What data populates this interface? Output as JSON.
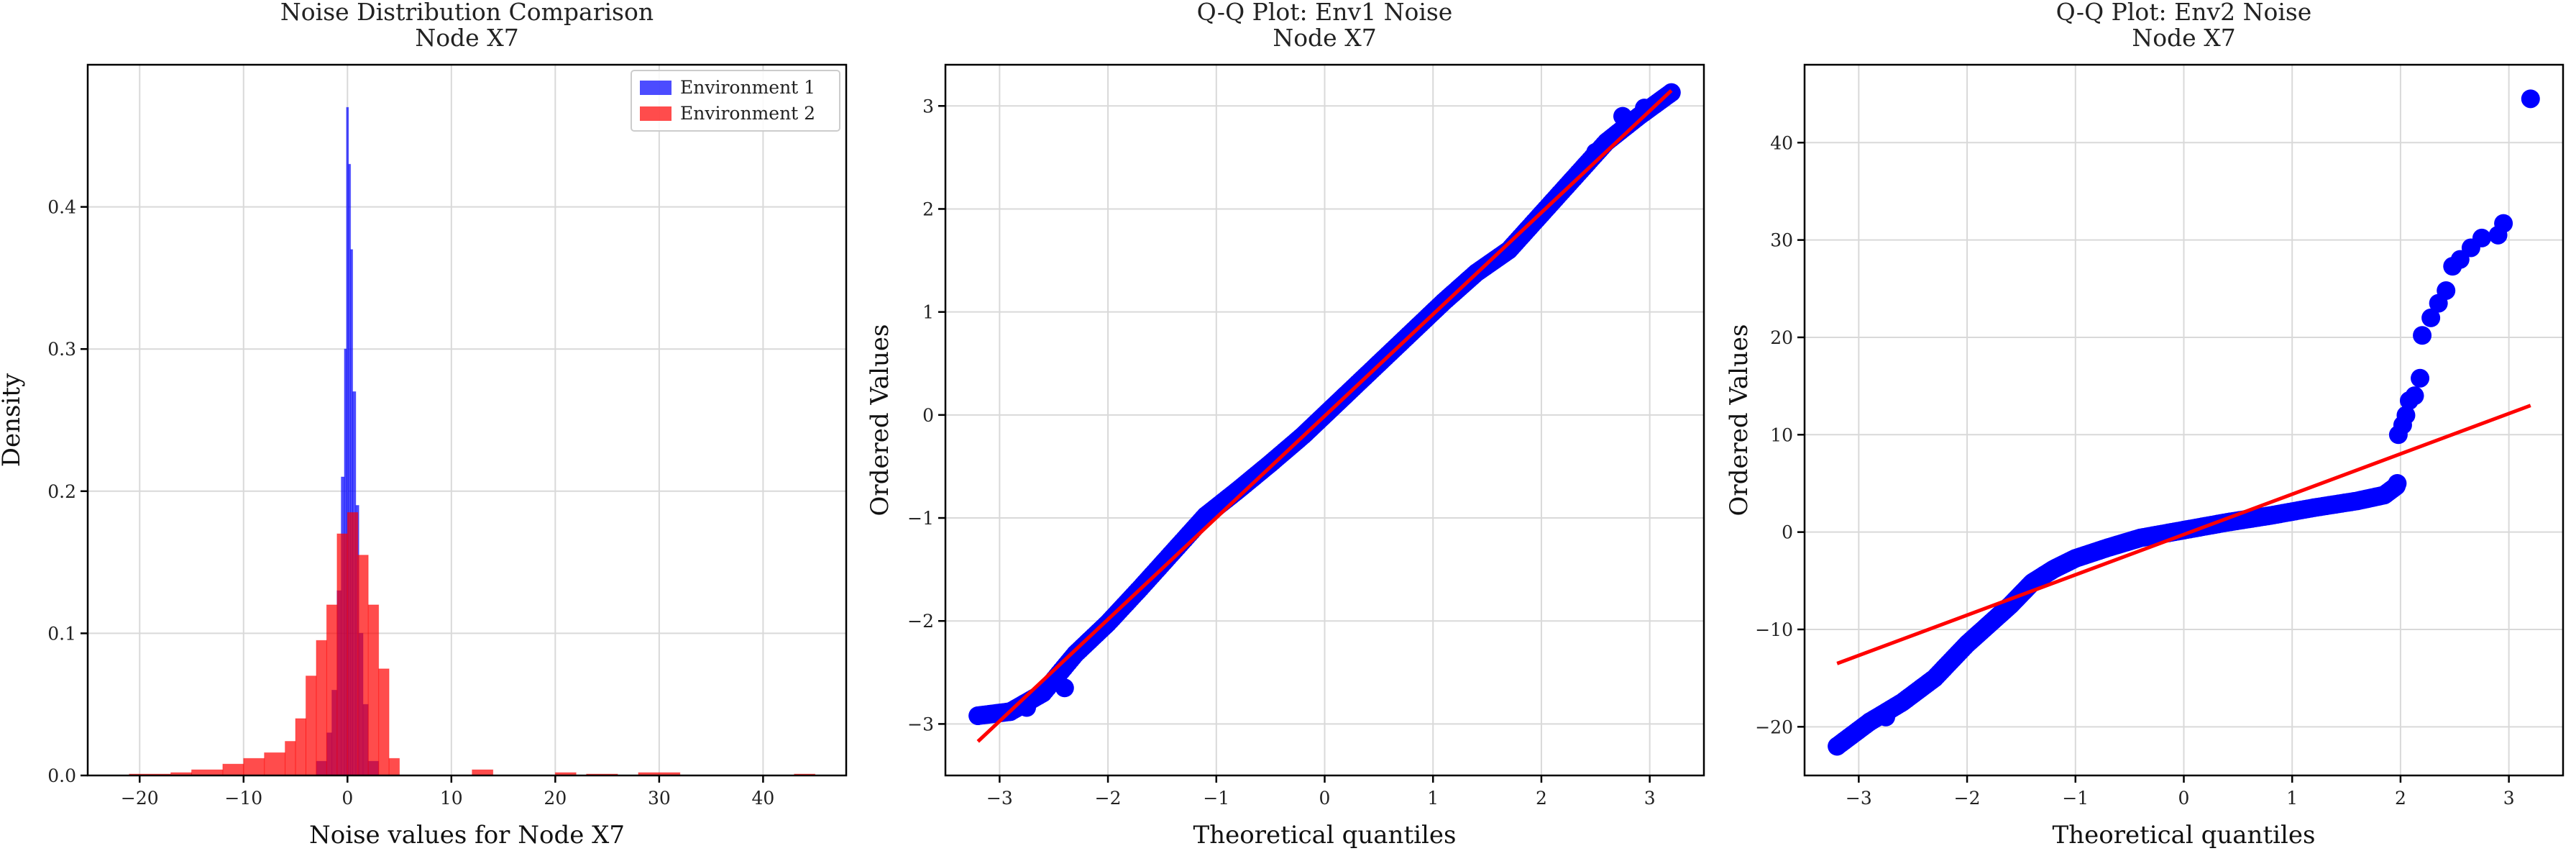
{
  "chart_data": [
    {
      "type": "histogram",
      "title": [
        "Noise Distribution Comparison",
        "Node X7"
      ],
      "xlabel": "Noise values for Node X7",
      "ylabel": "Density",
      "xlim": [
        -25,
        48
      ],
      "ylim": [
        0,
        0.5
      ],
      "xticks": [
        -20,
        -10,
        0,
        10,
        20,
        30,
        40
      ],
      "yticks": [
        0.0,
        0.1,
        0.2,
        0.3,
        0.4
      ],
      "grid": true,
      "legend_position": "top-right",
      "series": [
        {
          "name": "Environment 1",
          "color": "#0000ff",
          "bins": [
            [
              -3.0,
              -2.0,
              0.01
            ],
            [
              -2.0,
              -1.5,
              0.03
            ],
            [
              -1.5,
              -1.0,
              0.06
            ],
            [
              -1.0,
              -0.6,
              0.13
            ],
            [
              -0.6,
              -0.3,
              0.21
            ],
            [
              -0.3,
              -0.1,
              0.3
            ],
            [
              -0.1,
              0.1,
              0.47
            ],
            [
              0.1,
              0.3,
              0.43
            ],
            [
              0.3,
              0.5,
              0.37
            ],
            [
              0.5,
              0.8,
              0.27
            ],
            [
              0.8,
              1.1,
              0.19
            ],
            [
              1.1,
              1.5,
              0.1
            ],
            [
              1.5,
              2.0,
              0.05
            ],
            [
              2.0,
              3.0,
              0.01
            ]
          ]
        },
        {
          "name": "Environment 2",
          "color": "#ff0000",
          "bins": [
            [
              -21,
              -17,
              0.001
            ],
            [
              -17,
              -15,
              0.002
            ],
            [
              -15,
              -12,
              0.004
            ],
            [
              -12,
              -10,
              0.008
            ],
            [
              -10,
              -8,
              0.012
            ],
            [
              -8,
              -6,
              0.016
            ],
            [
              -6,
              -5,
              0.024
            ],
            [
              -5,
              -4,
              0.04
            ],
            [
              -4,
              -3,
              0.07
            ],
            [
              -3,
              -2,
              0.095
            ],
            [
              -2,
              -1,
              0.12
            ],
            [
              -1,
              0,
              0.17
            ],
            [
              0,
              1,
              0.185
            ],
            [
              1,
              2,
              0.155
            ],
            [
              2,
              3,
              0.12
            ],
            [
              3,
              4,
              0.075
            ],
            [
              4,
              5,
              0.012
            ],
            [
              12,
              14,
              0.004
            ],
            [
              20,
              22,
              0.002
            ],
            [
              23,
              26,
              0.001
            ],
            [
              28,
              32,
              0.002
            ],
            [
              43,
              45,
              0.001
            ]
          ]
        }
      ]
    },
    {
      "type": "scatter",
      "title": [
        "Q-Q Plot: Env1 Noise",
        "Node X7"
      ],
      "xlabel": "Theoretical quantiles",
      "ylabel": "Ordered Values",
      "xlim": [
        -3.5,
        3.5
      ],
      "ylim": [
        -3.5,
        3.4
      ],
      "xticks": [
        -3,
        -2,
        -1,
        0,
        1,
        2,
        3
      ],
      "yticks": [
        -3,
        -2,
        -1,
        0,
        1,
        2,
        3
      ],
      "grid": true,
      "points_color": "#0000ff",
      "line_color": "#ff0000",
      "fit_line": {
        "x": [
          -3.2,
          3.2
        ],
        "y": [
          -3.17,
          3.15
        ]
      },
      "quantile_curve": [
        [
          -3.2,
          -2.92
        ],
        [
          -2.9,
          -2.88
        ],
        [
          -2.6,
          -2.7
        ],
        [
          -2.3,
          -2.32
        ],
        [
          -2.0,
          -2.02
        ],
        [
          -1.7,
          -1.68
        ],
        [
          -1.4,
          -1.33
        ],
        [
          -1.1,
          -0.98
        ],
        [
          -0.8,
          -0.73
        ],
        [
          -0.5,
          -0.47
        ],
        [
          -0.2,
          -0.2
        ],
        [
          0.0,
          0.0
        ],
        [
          0.2,
          0.2
        ],
        [
          0.5,
          0.5
        ],
        [
          0.8,
          0.8
        ],
        [
          1.1,
          1.1
        ],
        [
          1.4,
          1.38
        ],
        [
          1.7,
          1.6
        ],
        [
          2.0,
          1.95
        ],
        [
          2.3,
          2.3
        ],
        [
          2.6,
          2.65
        ],
        [
          2.9,
          2.9
        ],
        [
          3.2,
          3.13
        ]
      ],
      "tail_points": [
        [
          -3.2,
          -2.92
        ],
        [
          -2.9,
          -2.88
        ],
        [
          -2.75,
          -2.84
        ],
        [
          -2.4,
          -2.65
        ],
        [
          2.5,
          2.55
        ],
        [
          2.75,
          2.9
        ],
        [
          2.95,
          2.98
        ],
        [
          3.2,
          3.13
        ]
      ]
    },
    {
      "type": "scatter",
      "title": [
        "Q-Q Plot: Env2 Noise",
        "Node X7"
      ],
      "xlabel": "Theoretical quantiles",
      "ylabel": "Ordered Values",
      "xlim": [
        -3.5,
        3.5
      ],
      "ylim": [
        -25,
        48
      ],
      "xticks": [
        -3,
        -2,
        -1,
        0,
        1,
        2,
        3
      ],
      "yticks": [
        -20,
        -10,
        0,
        10,
        20,
        30,
        40
      ],
      "grid": true,
      "points_color": "#0000ff",
      "line_color": "#ff0000",
      "fit_line": {
        "x": [
          -3.2,
          3.2
        ],
        "y": [
          -13.5,
          13.0
        ]
      },
      "quantile_curve": [
        [
          -3.2,
          -22
        ],
        [
          -2.9,
          -19.5
        ],
        [
          -2.6,
          -17.5
        ],
        [
          -2.3,
          -15
        ],
        [
          -2.0,
          -11.5
        ],
        [
          -1.8,
          -9.5
        ],
        [
          -1.6,
          -7.5
        ],
        [
          -1.4,
          -5.2
        ],
        [
          -1.2,
          -3.8
        ],
        [
          -1.0,
          -2.7
        ],
        [
          -0.7,
          -1.6
        ],
        [
          -0.4,
          -0.6
        ],
        [
          0.0,
          0.2
        ],
        [
          0.4,
          1.0
        ],
        [
          0.8,
          1.7
        ],
        [
          1.2,
          2.5
        ],
        [
          1.6,
          3.2
        ],
        [
          1.85,
          3.8
        ],
        [
          1.97,
          4.8
        ]
      ],
      "tail_points": [
        [
          -3.2,
          -22
        ],
        [
          -2.9,
          -19.5
        ],
        [
          -2.75,
          -19
        ],
        [
          1.97,
          5.0
        ],
        [
          1.98,
          10
        ],
        [
          2.02,
          11
        ],
        [
          2.05,
          12
        ],
        [
          2.08,
          13.5
        ],
        [
          2.13,
          14
        ],
        [
          2.18,
          15.8
        ],
        [
          2.2,
          20.2
        ],
        [
          2.28,
          22
        ],
        [
          2.35,
          23.5
        ],
        [
          2.42,
          24.8
        ],
        [
          2.48,
          27.3
        ],
        [
          2.55,
          28
        ],
        [
          2.65,
          29.2
        ],
        [
          2.75,
          30.2
        ],
        [
          2.9,
          30.5
        ],
        [
          2.95,
          31.7
        ],
        [
          3.2,
          44.5
        ]
      ]
    }
  ]
}
